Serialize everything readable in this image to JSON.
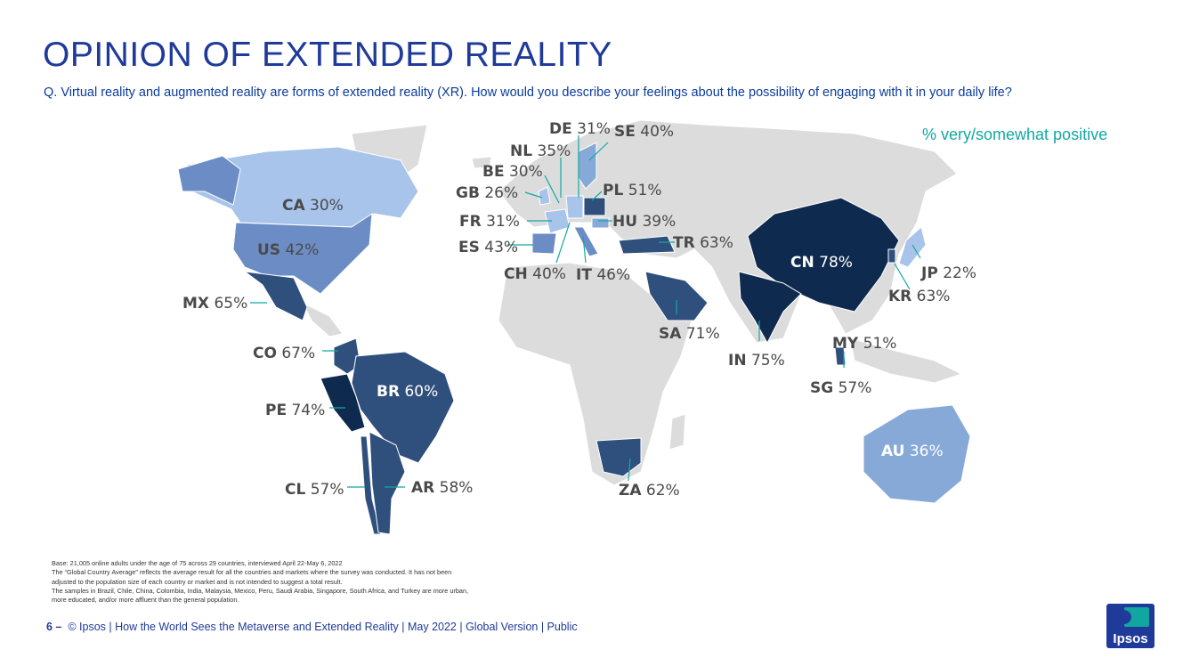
{
  "header": {
    "title": "OPINION OF EXTENDED REALITY",
    "question": "Q. Virtual reality and augmented reality are forms of extended reality (XR). How would you describe your feelings about the possibility of engaging with it in your daily life?",
    "legend_note": "% very/somewhat positive"
  },
  "colors": {
    "title": "#1f3a99",
    "accent_teal": "#12a8a3",
    "land_base": "#dcdcdc",
    "shade_20s_30s": "#a8c4ea",
    "shade_30s_40s": "#86a9d8",
    "shade_40s": "#6b8cc4",
    "shade_50s_60s": "#2f4f7c",
    "shade_70s": "#0f2a4f"
  },
  "map": {
    "countries": [
      {
        "code": "CA",
        "pct": "30%",
        "value": 30
      },
      {
        "code": "US",
        "pct": "42%",
        "value": 42
      },
      {
        "code": "MX",
        "pct": "65%",
        "value": 65
      },
      {
        "code": "CO",
        "pct": "67%",
        "value": 67
      },
      {
        "code": "PE",
        "pct": "74%",
        "value": 74
      },
      {
        "code": "BR",
        "pct": "60%",
        "value": 60
      },
      {
        "code": "CL",
        "pct": "57%",
        "value": 57
      },
      {
        "code": "AR",
        "pct": "58%",
        "value": 58
      },
      {
        "code": "DE",
        "pct": "31%",
        "value": 31
      },
      {
        "code": "SE",
        "pct": "40%",
        "value": 40
      },
      {
        "code": "NL",
        "pct": "35%",
        "value": 35
      },
      {
        "code": "BE",
        "pct": "30%",
        "value": 30
      },
      {
        "code": "GB",
        "pct": "26%",
        "value": 26
      },
      {
        "code": "PL",
        "pct": "51%",
        "value": 51
      },
      {
        "code": "FR",
        "pct": "31%",
        "value": 31
      },
      {
        "code": "HU",
        "pct": "39%",
        "value": 39
      },
      {
        "code": "ES",
        "pct": "43%",
        "value": 43
      },
      {
        "code": "TR",
        "pct": "63%",
        "value": 63
      },
      {
        "code": "CH",
        "pct": "40%",
        "value": 40
      },
      {
        "code": "IT",
        "pct": "46%",
        "value": 46
      },
      {
        "code": "SA",
        "pct": "71%",
        "value": 71
      },
      {
        "code": "CN",
        "pct": "78%",
        "value": 78
      },
      {
        "code": "JP",
        "pct": "22%",
        "value": 22
      },
      {
        "code": "KR",
        "pct": "63%",
        "value": 63
      },
      {
        "code": "IN",
        "pct": "75%",
        "value": 75
      },
      {
        "code": "MY",
        "pct": "51%",
        "value": 51
      },
      {
        "code": "SG",
        "pct": "57%",
        "value": 57
      },
      {
        "code": "ZA",
        "pct": "62%",
        "value": 62
      },
      {
        "code": "AU",
        "pct": "36%",
        "value": 36
      }
    ]
  },
  "notes": [
    "Base: 21,005 online adults under the age of 75 across 29 countries, interviewed April 22-May 6, 2022",
    "The “Global Country Average” reflects the average result for all the countries and markets where the survey was conducted. It has not been adjusted to the population size of each country or market and is not intended to suggest a total result.",
    "The samples in Brazil, Chile, China, Colombia, India, Malaysia, Mexico, Peru, Saudi Arabia, Singapore, South Africa, and Turkey are more urban, more educated, and/or more affluent than the general population."
  ],
  "footer": {
    "page": "6",
    "dash": "–",
    "text": "© Ipsos | How the World Sees the Metaverse and Extended Reality | May 2022 | Global Version | Public"
  },
  "logo": {
    "text": "Ipsos"
  }
}
